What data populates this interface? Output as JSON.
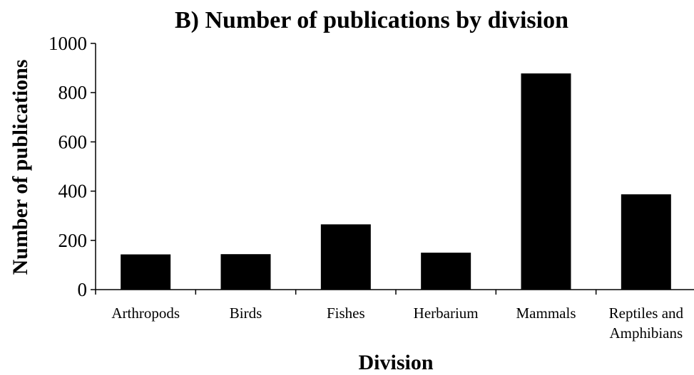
{
  "chart_data": {
    "type": "bar",
    "title": "B) Number of publications by division",
    "xlabel": "Division",
    "ylabel": "Number of publications",
    "categories": [
      "Arthropods",
      "Birds",
      "Fishes",
      "Herbarium",
      "Mammals",
      "Reptiles and Amphibians"
    ],
    "category_lines": [
      [
        "Arthropods"
      ],
      [
        "Birds"
      ],
      [
        "Fishes"
      ],
      [
        "Herbarium"
      ],
      [
        "Mammals"
      ],
      [
        "Reptiles and",
        "Amphibians"
      ]
    ],
    "values": [
      143,
      144,
      265,
      150,
      878,
      387
    ],
    "ylim": [
      0,
      1000
    ],
    "yticks": [
      0,
      200,
      400,
      600,
      800,
      1000
    ],
    "grid": false,
    "legend": "none",
    "bar_color": "#000000"
  }
}
